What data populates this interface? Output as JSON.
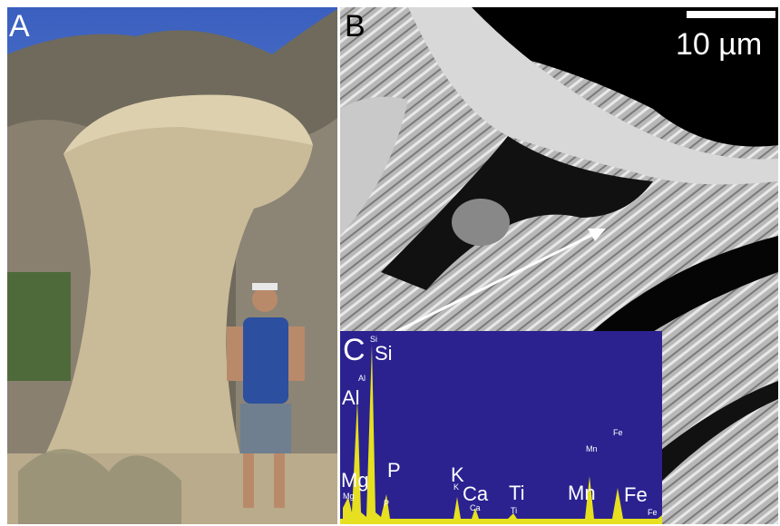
{
  "panels": [
    {
      "label": "A"
    },
    {
      "label": "B",
      "scale_bar": "10 µm"
    },
    {
      "label": "C",
      "peaks": [
        {
          "element": "Si",
          "small": "Si"
        },
        {
          "element": "Al",
          "small": "Al"
        },
        {
          "element": "Mg",
          "small": "Mg"
        },
        {
          "element": "P",
          "small": "P"
        },
        {
          "element": "K",
          "small": "K"
        },
        {
          "element": "Ca",
          "small": "Ca"
        },
        {
          "element": "Ti",
          "small": "Ti"
        },
        {
          "element": "Mn",
          "small": "Mn"
        },
        {
          "element": "Fe",
          "small": "Fe"
        }
      ],
      "extra_small": "Fe"
    }
  ]
}
